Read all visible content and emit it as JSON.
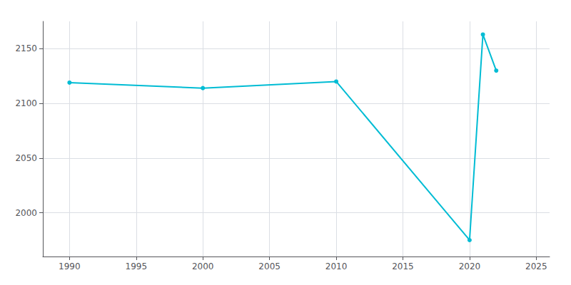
{
  "chart_data": {
    "type": "line",
    "x": [
      1990,
      2000,
      2010,
      2020,
      2021,
      2022
    ],
    "values": [
      2119,
      2114,
      2120,
      1975,
      2163,
      2130
    ],
    "color": "#00BCD4",
    "marker": "circle",
    "xlim": [
      1988,
      2026
    ],
    "xticks": [
      1990,
      1995,
      2000,
      2005,
      2010,
      2015,
      2020,
      2025
    ],
    "ylim": [
      1960,
      2175
    ],
    "yticks": [
      2000,
      2050,
      2100,
      2150
    ],
    "grid": true
  }
}
